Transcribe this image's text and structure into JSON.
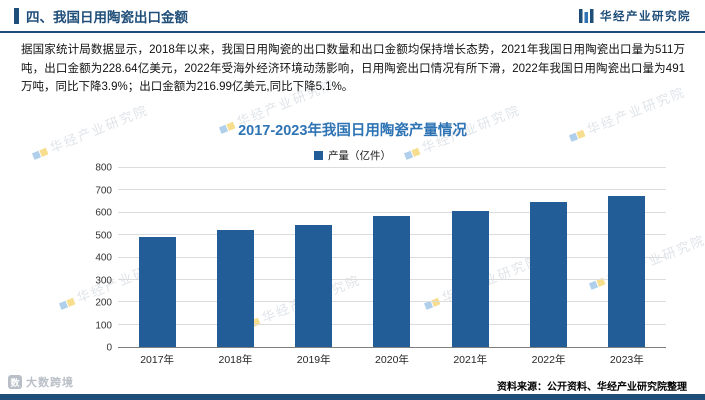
{
  "header": {
    "section_title": "四、我国日用陶瓷出口金额",
    "brand_name": "华经产业研究院"
  },
  "body": {
    "paragraph": "据国家统计局数据显示，2018年以来，我国日用陶瓷的出口数量和出口金额均保持增长态势，2021年我国日用陶瓷出口量为511万吨，出口金额为228.64亿美元，2022年受海外经济环境动荡影响，日用陶瓷出口情况有所下滑，2022年我国日用陶瓷出口量为491万吨，同比下降3.9%；出口金额为216.99亿美元,同比下降5.1%。"
  },
  "chart_data": {
    "type": "bar",
    "title": "2017-2023年我国日用陶瓷产量情况",
    "legend": "产量（亿件）",
    "categories": [
      "2017年",
      "2018年",
      "2019年",
      "2020年",
      "2021年",
      "2022年",
      "2023年"
    ],
    "values": [
      490,
      525,
      545,
      585,
      610,
      650,
      675
    ],
    "ylim": [
      0,
      800
    ],
    "ytick_step": 100,
    "grid": true,
    "legend_position": "top-center",
    "bar_color": "#235D97"
  },
  "footer": {
    "source": "资料来源：公开资料、华经产业研究院整理"
  },
  "watermarks": {
    "brand_text": "华经产业研究院",
    "corner_text": "大数跨境"
  },
  "colors": {
    "accent_navy": "#1F4E79",
    "title_blue": "#2E74B5",
    "bar_blue": "#235D97"
  }
}
